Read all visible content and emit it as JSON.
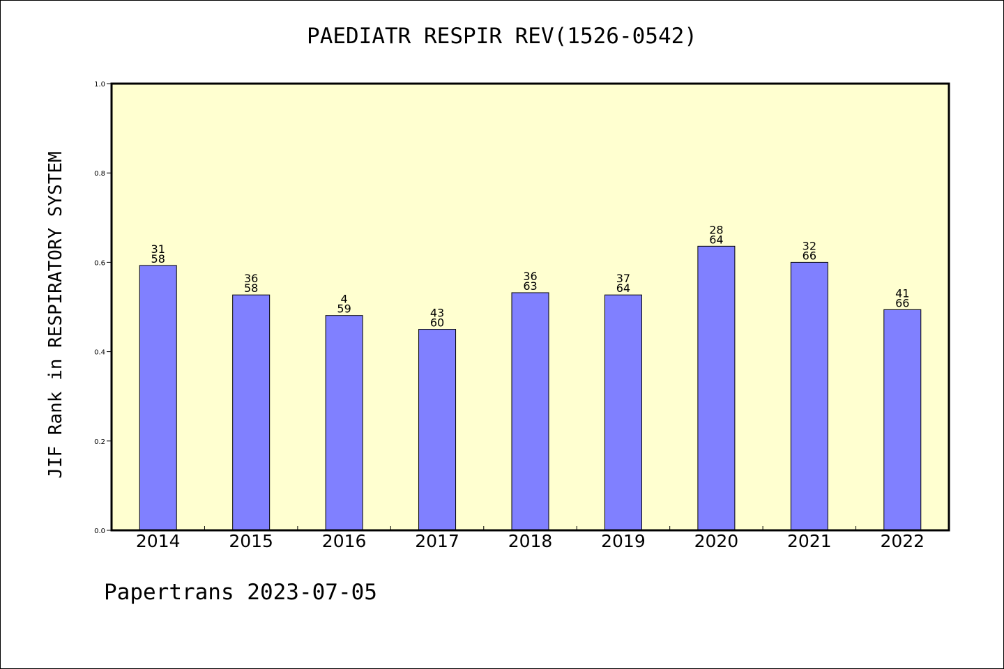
{
  "chart_data": {
    "type": "bar",
    "title": "PAEDIATR RESPIR REV(1526-0542)",
    "ylabel": "JIF Rank in RESPIRATORY SYSTEM",
    "xlabel": "",
    "ylim": [
      0,
      1.0
    ],
    "yticks": [
      "0.0",
      "0.2",
      "0.4",
      "0.6",
      "0.8",
      "1.0"
    ],
    "categories": [
      "2014",
      "2015",
      "2016",
      "2017",
      "2018",
      "2019",
      "2020",
      "2021",
      "2022"
    ],
    "values": [
      0.593,
      0.527,
      0.481,
      0.45,
      0.532,
      0.527,
      0.636,
      0.6,
      0.494
    ],
    "rank_labels": [
      "31",
      "36",
      "4",
      "43",
      "36",
      "37",
      "28",
      "32",
      "41"
    ],
    "total_labels": [
      "58",
      "58",
      "59",
      "60",
      "63",
      "64",
      "64",
      "66",
      "66"
    ],
    "grid": false,
    "colors": {
      "bar_fill": "#8080ff",
      "plot_background": "#ffffd0",
      "axis": "#000000"
    }
  },
  "footer": "Papertrans 2023-07-05"
}
